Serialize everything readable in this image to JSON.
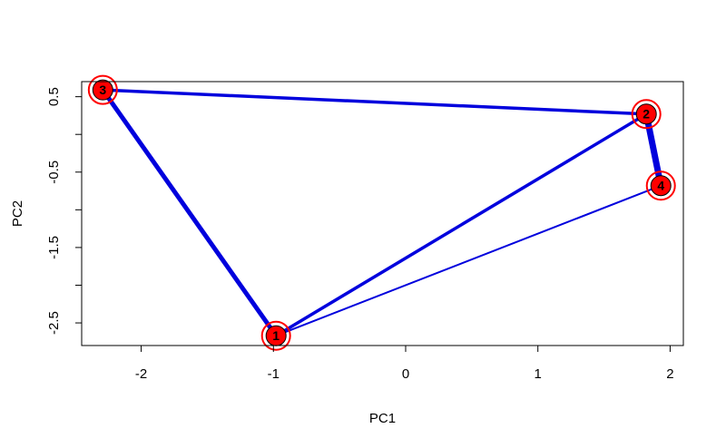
{
  "chart_data": {
    "type": "network-scatter",
    "title": "",
    "xlabel": "PC1",
    "ylabel": "PC2",
    "xlim": [
      -2.45,
      2.1
    ],
    "ylim": [
      -2.8,
      0.7
    ],
    "x_ticks": [
      -2,
      -1,
      0,
      1,
      2
    ],
    "x_tick_labels": [
      "-2",
      "-1",
      "0",
      "1",
      "2"
    ],
    "y_ticks": [
      -2.5,
      -2,
      -1.5,
      -1,
      -0.5,
      0,
      0.5
    ],
    "y_tick_labels": [
      "-2.5",
      "",
      "-1.5",
      "",
      "-0.5",
      "",
      "0.5"
    ],
    "grid": false,
    "nodes": [
      {
        "label": "1",
        "x": -0.98,
        "y": -2.67
      },
      {
        "label": "2",
        "x": 1.82,
        "y": 0.27
      },
      {
        "label": "3",
        "x": -2.29,
        "y": 0.59
      },
      {
        "label": "4",
        "x": 1.93,
        "y": -0.68
      }
    ],
    "edges": [
      {
        "from": "1",
        "to": "3",
        "weight": 5
      },
      {
        "from": "2",
        "to": "3",
        "weight": 3.5
      },
      {
        "from": "2",
        "to": "4",
        "weight": 7
      },
      {
        "from": "1",
        "to": "2",
        "weight": 3.5
      },
      {
        "from": "1",
        "to": "4",
        "weight": 2
      }
    ],
    "colors": {
      "edge": "#0000dd",
      "node_fill": "#ff0000",
      "node_ring": "#ff0000",
      "axis": "#000000"
    }
  }
}
